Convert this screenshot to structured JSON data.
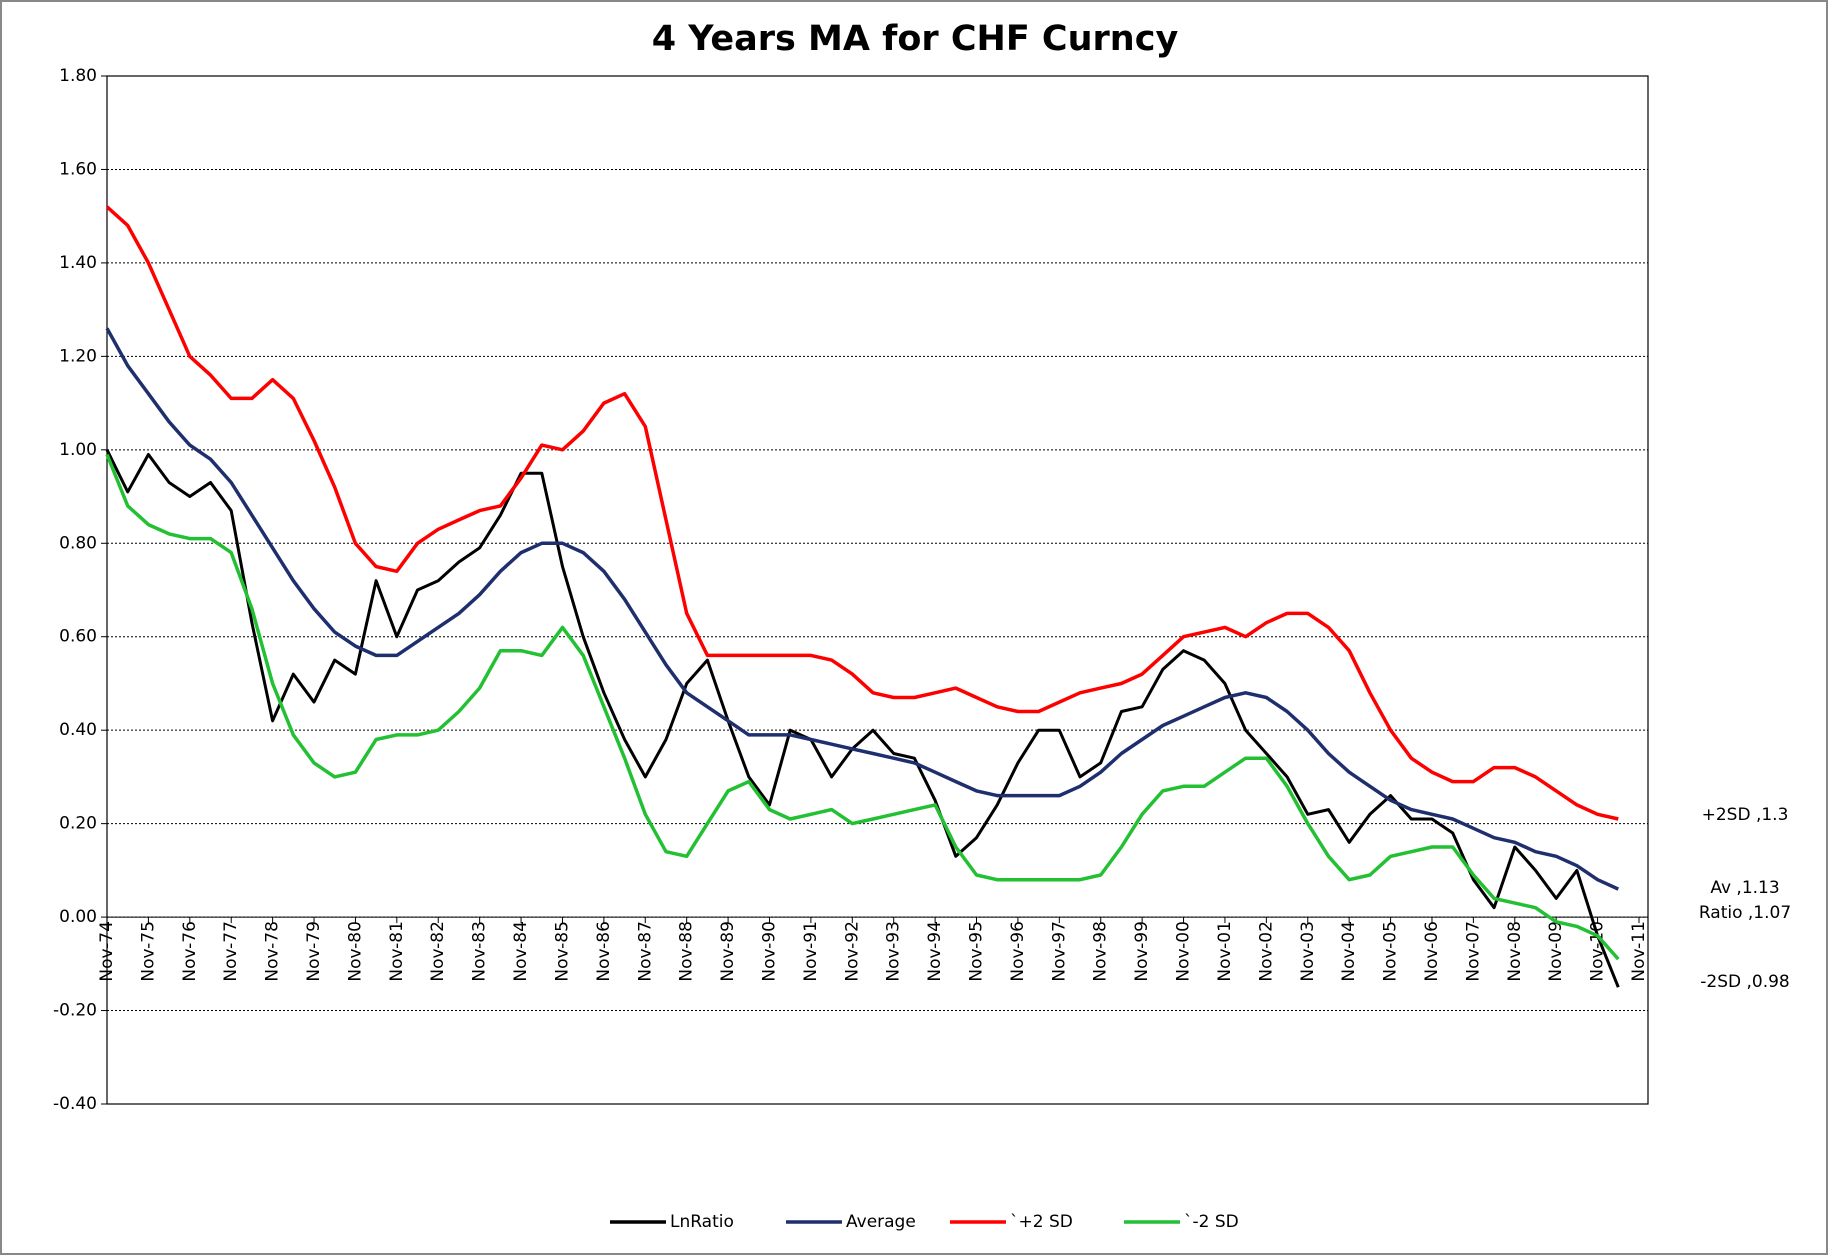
{
  "chart_data": {
    "type": "line",
    "title": "4 Years MA for CHF Curncy",
    "categories": [
      "Nov-74",
      null,
      "Nov-75",
      null,
      "Nov-76",
      null,
      "Nov-77",
      null,
      "Nov-78",
      null,
      "Nov-79",
      null,
      "Nov-80",
      null,
      "Nov-81",
      null,
      "Nov-82",
      null,
      "Nov-83",
      null,
      "Nov-84",
      null,
      "Nov-85",
      null,
      "Nov-86",
      null,
      "Nov-87",
      null,
      "Nov-88",
      null,
      "Nov-89",
      null,
      "Nov-90",
      null,
      "Nov-91",
      null,
      "Nov-92",
      null,
      "Nov-93",
      null,
      "Nov-94",
      null,
      "Nov-95",
      null,
      "Nov-96",
      null,
      "Nov-97",
      null,
      "Nov-98",
      null,
      "Nov-99",
      null,
      "Nov-00",
      null,
      "Nov-01",
      null,
      "Nov-02",
      null,
      "Nov-03",
      null,
      "Nov-04",
      null,
      "Nov-05",
      null,
      "Nov-06",
      null,
      "Nov-07",
      null,
      "Nov-08",
      null,
      "Nov-09",
      null,
      "Nov-10",
      null,
      "Nov-11"
    ],
    "series": [
      {
        "name": "LnRatio",
        "color": "#000000",
        "values": [
          1.0,
          0.91,
          0.99,
          0.93,
          0.9,
          0.93,
          0.87,
          0.63,
          0.42,
          0.52,
          0.46,
          0.55,
          0.52,
          0.72,
          0.6,
          0.7,
          0.72,
          0.76,
          0.79,
          0.86,
          0.95,
          0.95,
          0.75,
          0.6,
          0.48,
          0.38,
          0.3,
          0.38,
          0.5,
          0.55,
          0.42,
          0.3,
          0.24,
          0.4,
          0.38,
          0.3,
          0.36,
          0.4,
          0.35,
          0.34,
          0.25,
          0.13,
          0.17,
          0.24,
          0.33,
          0.4,
          0.4,
          0.3,
          0.33,
          0.44,
          0.45,
          0.53,
          0.57,
          0.55,
          0.5,
          0.4,
          0.35,
          0.3,
          0.22,
          0.23,
          0.16,
          0.22,
          0.26,
          0.21,
          0.21,
          0.18,
          0.08,
          0.02,
          0.15,
          0.1,
          0.04,
          0.1,
          -0.04,
          -0.15,
          null
        ]
      },
      {
        "name": "Average",
        "color": "#1f2f6e",
        "values": [
          1.26,
          1.18,
          1.12,
          1.06,
          1.01,
          0.98,
          0.93,
          0.86,
          0.79,
          0.72,
          0.66,
          0.61,
          0.58,
          0.56,
          0.56,
          0.59,
          0.62,
          0.65,
          0.69,
          0.74,
          0.78,
          0.8,
          0.8,
          0.78,
          0.74,
          0.68,
          0.61,
          0.54,
          0.48,
          0.45,
          0.42,
          0.39,
          0.39,
          0.39,
          0.38,
          0.37,
          0.36,
          0.35,
          0.34,
          0.33,
          0.31,
          0.29,
          0.27,
          0.26,
          0.26,
          0.26,
          0.26,
          0.28,
          0.31,
          0.35,
          0.38,
          0.41,
          0.43,
          0.45,
          0.47,
          0.48,
          0.47,
          0.44,
          0.4,
          0.35,
          0.31,
          0.28,
          0.25,
          0.23,
          0.22,
          0.21,
          0.19,
          0.17,
          0.16,
          0.14,
          0.13,
          0.11,
          0.08,
          0.06,
          null
        ]
      },
      {
        "name": "`+2 SD",
        "color": "#ff0000",
        "values": [
          1.52,
          1.48,
          1.4,
          1.3,
          1.2,
          1.16,
          1.11,
          1.11,
          1.15,
          1.11,
          1.02,
          0.92,
          0.8,
          0.75,
          0.74,
          0.8,
          0.83,
          0.85,
          0.87,
          0.88,
          0.94,
          1.01,
          1.0,
          1.04,
          1.1,
          1.12,
          1.05,
          0.85,
          0.65,
          0.56,
          0.56,
          0.56,
          0.56,
          0.56,
          0.56,
          0.55,
          0.52,
          0.48,
          0.47,
          0.47,
          0.48,
          0.49,
          0.47,
          0.45,
          0.44,
          0.44,
          0.46,
          0.48,
          0.49,
          0.5,
          0.52,
          0.56,
          0.6,
          0.61,
          0.62,
          0.6,
          0.63,
          0.65,
          0.65,
          0.62,
          0.57,
          0.48,
          0.4,
          0.34,
          0.31,
          0.29,
          0.29,
          0.32,
          0.32,
          0.3,
          0.27,
          0.24,
          0.22,
          0.21,
          null
        ]
      },
      {
        "name": "`-2 SD",
        "color": "#22c032",
        "values": [
          0.99,
          0.88,
          0.84,
          0.82,
          0.81,
          0.81,
          0.78,
          0.66,
          0.5,
          0.39,
          0.33,
          0.3,
          0.31,
          0.38,
          0.39,
          0.39,
          0.4,
          0.44,
          0.49,
          0.57,
          0.57,
          0.56,
          0.62,
          0.56,
          0.45,
          0.34,
          0.22,
          0.14,
          0.13,
          0.2,
          0.27,
          0.29,
          0.23,
          0.21,
          0.22,
          0.23,
          0.2,
          0.21,
          0.22,
          0.23,
          0.24,
          0.15,
          0.09,
          0.08,
          0.08,
          0.08,
          0.08,
          0.08,
          0.09,
          0.15,
          0.22,
          0.27,
          0.28,
          0.28,
          0.31,
          0.34,
          0.34,
          0.28,
          0.2,
          0.13,
          0.08,
          0.09,
          0.13,
          0.14,
          0.15,
          0.15,
          0.09,
          0.04,
          0.03,
          0.02,
          -0.01,
          -0.02,
          -0.04,
          -0.09,
          null
        ]
      }
    ],
    "ylim": [
      -0.4,
      1.8
    ],
    "yticks": [
      {
        "value": -0.4,
        "label": "-0.40"
      },
      {
        "value": -0.2,
        "label": "-0.20"
      },
      {
        "value": 0,
        "label": "0.00"
      },
      {
        "value": 0.2,
        "label": "0.20"
      },
      {
        "value": 0.4,
        "label": "0.40"
      },
      {
        "value": 0.6,
        "label": "0.60"
      },
      {
        "value": 0.8,
        "label": "0.80"
      },
      {
        "value": 1.0,
        "label": "1.00"
      },
      {
        "value": 1.2,
        "label": "1.20"
      },
      {
        "value": 1.4,
        "label": "1.40"
      },
      {
        "value": 1.6,
        "label": "1.60"
      },
      {
        "value": 1.8,
        "label": "1.80"
      }
    ],
    "grid": true,
    "legend": "bottom",
    "annotations": [
      "+2SD ,1.3",
      "Av ,1.13",
      "Ratio ,1.07",
      "-2SD ,0.98"
    ]
  }
}
